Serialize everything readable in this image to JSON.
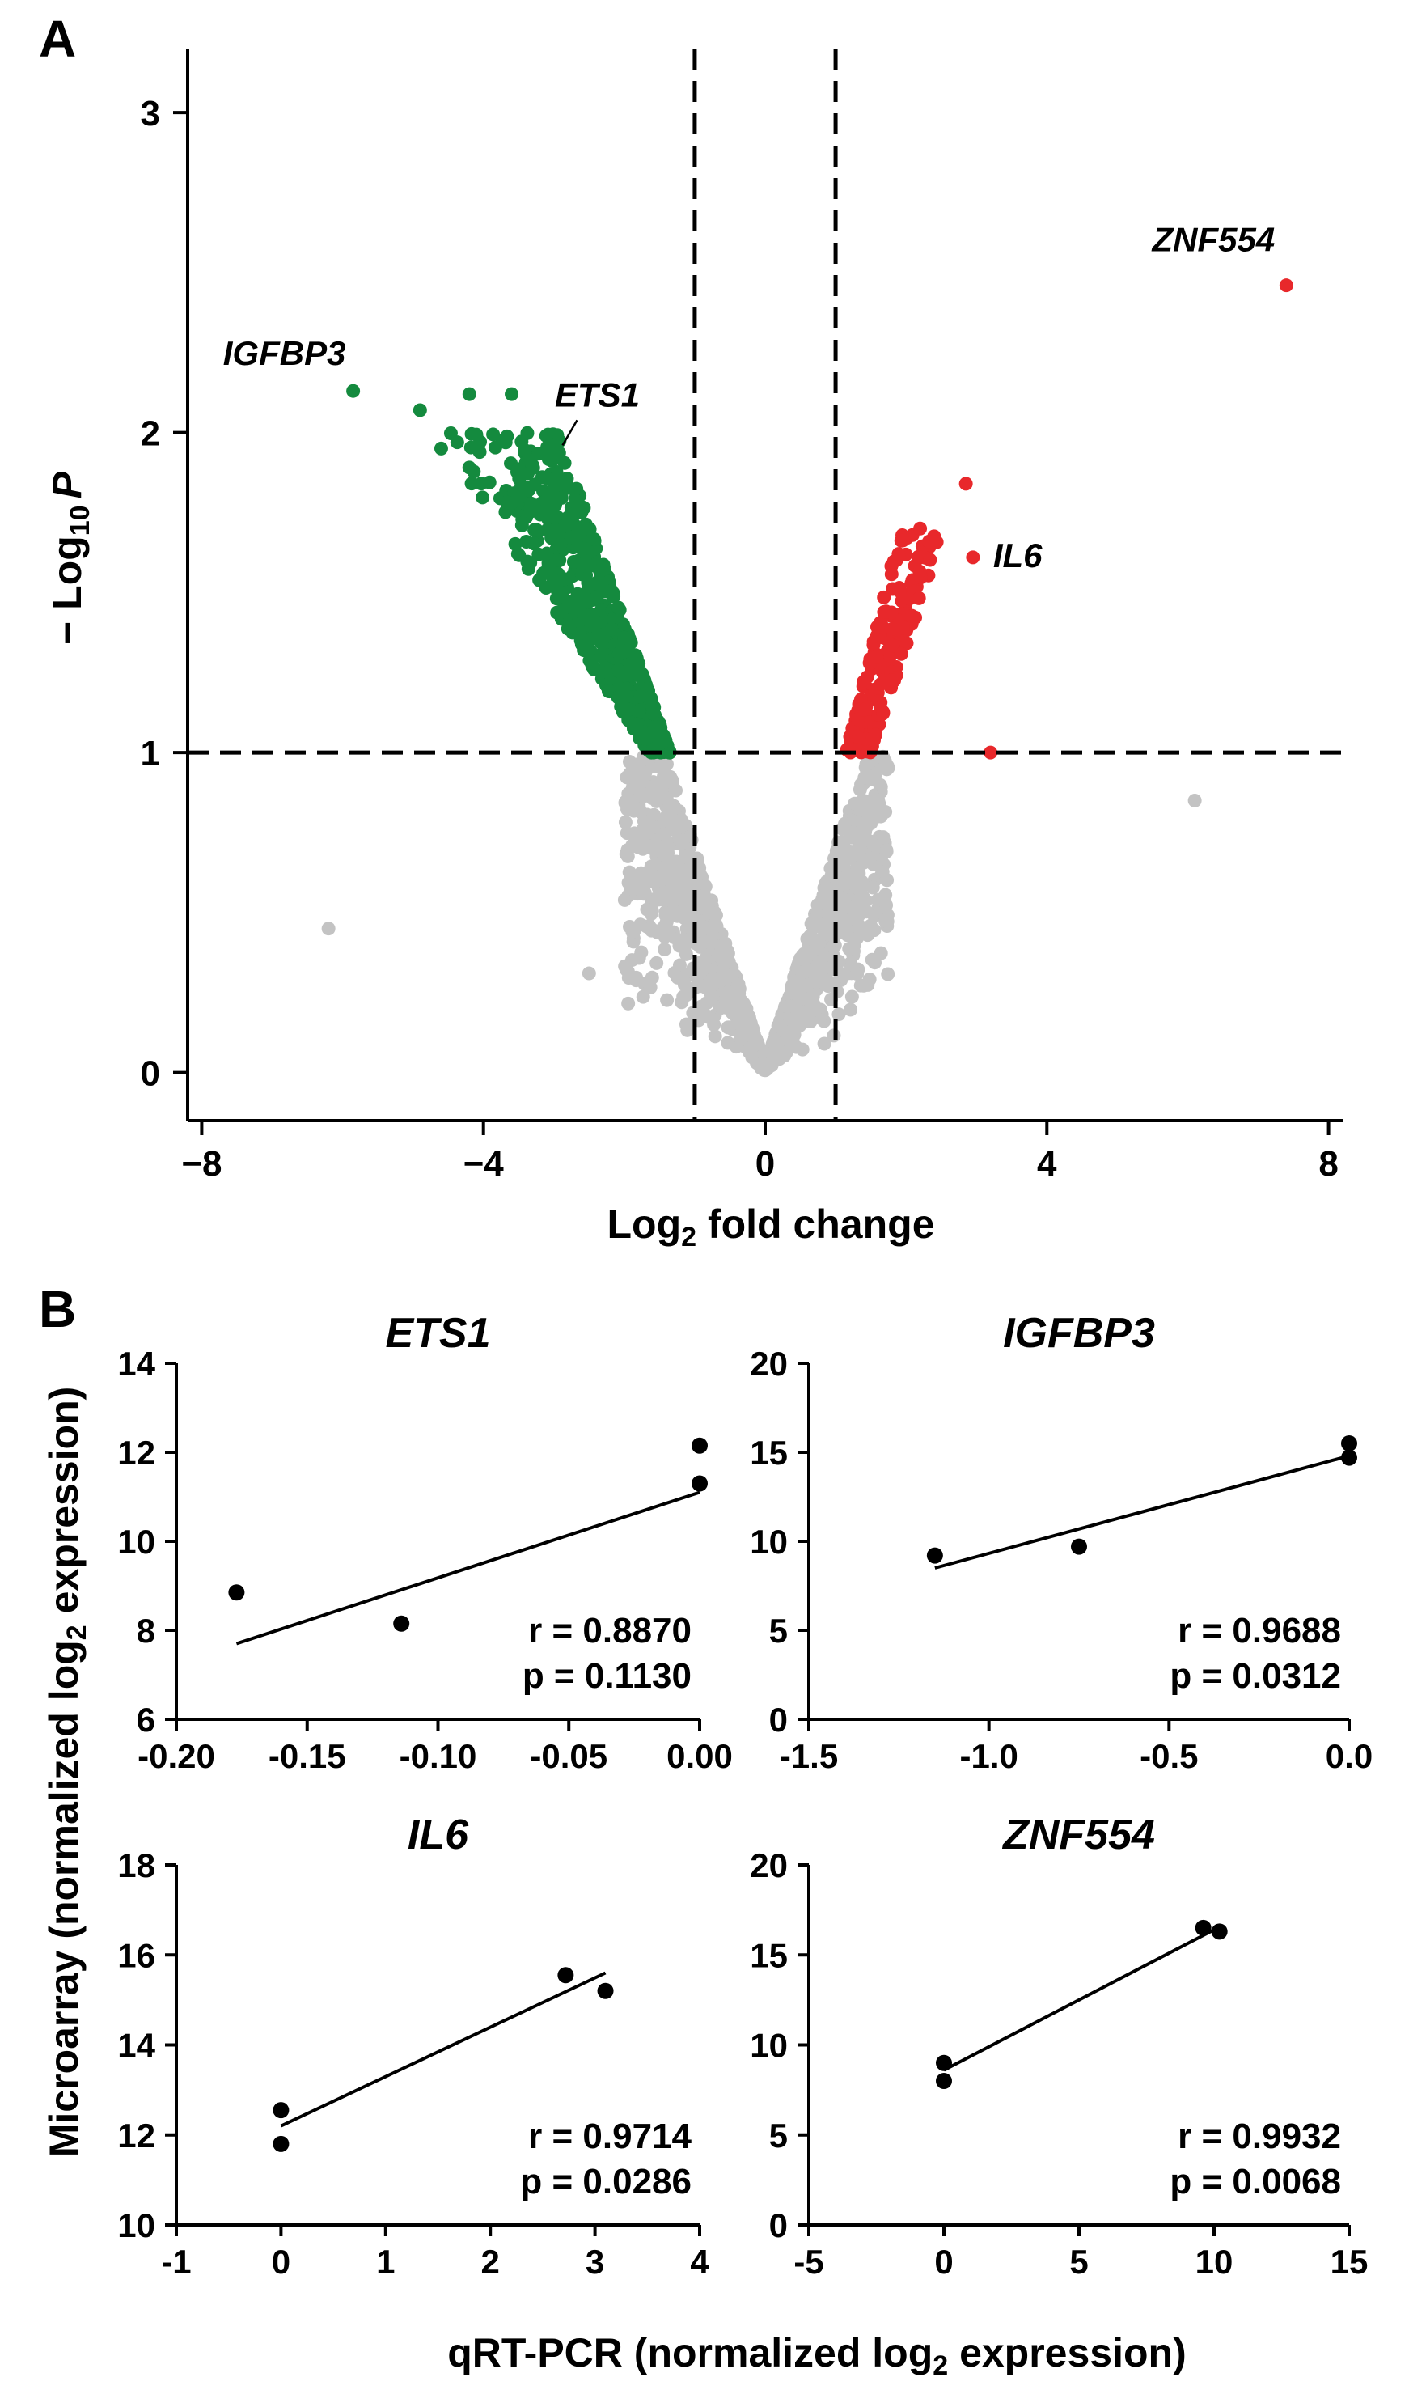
{
  "panel_a": {
    "letter": "A",
    "xlabel_main": "Log",
    "xlabel_sub": "2",
    "xlabel_rest": " fold change",
    "ylabel_pre": "− Log",
    "ylabel_sub": "10",
    "ylabel_italic": "P"
  },
  "panel_b": {
    "letter": "B",
    "ylabel": "Microarray (normalized log",
    "ylabel_sub": "2",
    "ylabel_end": " expression)",
    "xlabel": "qRT-PCR (normalized log",
    "xlabel_sub": "2",
    "xlabel_end": " expression)"
  },
  "colors": {
    "down": "#148a3e",
    "up": "#e8282b",
    "ns": "#c3c3c3",
    "ink": "#000000"
  },
  "chart_data": [
    {
      "type": "scatter",
      "title": "",
      "xlabel": "Log2 fold change",
      "ylabel": "− Log10 P",
      "xlim": [
        -8.2,
        8.2
      ],
      "ylim": [
        -0.15,
        3.2
      ],
      "xticks": [
        -8,
        -4,
        0,
        4,
        8
      ],
      "yticks": [
        0,
        1,
        2,
        3
      ],
      "thresholds": {
        "x": [
          -1,
          1
        ],
        "y": 1,
        "style": "dashed"
      },
      "grid": false,
      "series": [
        {
          "color_key": "ns",
          "cloud": "v_shape_nonsignificant",
          "points": [
            [
              -6.2,
              0.45
            ],
            [
              6.1,
              0.85
            ],
            [
              -2.5,
              0.31
            ]
          ]
        },
        {
          "color_key": "down",
          "cloud": "downregulated_band",
          "points": [
            [
              -5.85,
              2.13
            ],
            [
              -4.9,
              2.07
            ],
            [
              -4.6,
              1.95
            ],
            [
              -4.2,
              2.12
            ],
            [
              -3.6,
              2.12
            ]
          ]
        },
        {
          "color_key": "up",
          "cloud": "upregulated_band",
          "points": [
            [
              7.4,
              2.46
            ],
            [
              2.85,
              1.84
            ],
            [
              2.95,
              1.61
            ],
            [
              3.2,
              1.0
            ],
            [
              2.2,
              1.7
            ]
          ]
        }
      ],
      "annotations": [
        {
          "text": "ZNF554",
          "x": 7.4,
          "y": 2.46
        },
        {
          "text": "IGFBP3",
          "x": -5.85,
          "y": 2.13
        },
        {
          "text": "ETS1",
          "x": -2.9,
          "y": 1.95
        },
        {
          "text": "IL6",
          "x": 2.95,
          "y": 1.61
        }
      ]
    },
    {
      "type": "scatter",
      "title": "ETS1",
      "xlim": [
        -0.2,
        0.0
      ],
      "ylim": [
        6,
        14
      ],
      "xticks": [
        -0.2,
        -0.15,
        -0.1,
        -0.05,
        0.0
      ],
      "xtick_labels": [
        "-0.20",
        "-0.15",
        "-0.10",
        "-0.05",
        "0.00"
      ],
      "yticks": [
        6,
        8,
        10,
        12,
        14
      ],
      "x": [
        -0.177,
        -0.114,
        0.0,
        0.0
      ],
      "y": [
        8.85,
        8.15,
        12.15,
        11.3
      ],
      "fit": [
        [
          -0.177,
          7.7
        ],
        [
          0.0,
          11.1
        ]
      ],
      "stats": [
        "r = 0.8870",
        "p = 0.1130"
      ]
    },
    {
      "type": "scatter",
      "title": "IGFBP3",
      "xlim": [
        -1.5,
        0.0
      ],
      "ylim": [
        0,
        20
      ],
      "xticks": [
        -1.5,
        -1.0,
        -0.5,
        0.0
      ],
      "xtick_labels": [
        "-1.5",
        "-1.0",
        "-0.5",
        "0.0"
      ],
      "yticks": [
        0,
        5,
        10,
        15,
        20
      ],
      "x": [
        -1.15,
        -0.75,
        0.0,
        0.0
      ],
      "y": [
        9.2,
        9.7,
        15.5,
        14.7
      ],
      "fit": [
        [
          -1.15,
          8.5
        ],
        [
          0.0,
          14.8
        ]
      ],
      "stats": [
        "r = 0.9688",
        "p = 0.0312"
      ]
    },
    {
      "type": "scatter",
      "title": "IL6",
      "xlim": [
        -1,
        4
      ],
      "ylim": [
        10,
        18
      ],
      "xticks": [
        -1,
        0,
        1,
        2,
        3,
        4
      ],
      "xtick_labels": [
        "-1",
        "0",
        "1",
        "2",
        "3",
        "4"
      ],
      "yticks": [
        10,
        12,
        14,
        16,
        18
      ],
      "x": [
        0.0,
        0.0,
        2.72,
        3.1
      ],
      "y": [
        12.55,
        11.8,
        15.55,
        15.2
      ],
      "fit": [
        [
          0.0,
          12.2
        ],
        [
          3.1,
          15.6
        ]
      ],
      "stats": [
        "r = 0.9714",
        "p = 0.0286"
      ]
    },
    {
      "type": "scatter",
      "title": "ZNF554",
      "xlim": [
        -5,
        15
      ],
      "ylim": [
        0,
        20
      ],
      "xticks": [
        -5,
        0,
        5,
        10,
        15
      ],
      "xtick_labels": [
        "-5",
        "0",
        "5",
        "10",
        "15"
      ],
      "yticks": [
        0,
        5,
        10,
        15,
        20
      ],
      "x": [
        0.0,
        0.0,
        9.6,
        10.2
      ],
      "y": [
        9.0,
        8.0,
        16.5,
        16.3
      ],
      "fit": [
        [
          0.0,
          8.6
        ],
        [
          10.0,
          16.4
        ]
      ],
      "stats": [
        "r = 0.9932",
        "p = 0.0068"
      ]
    }
  ]
}
